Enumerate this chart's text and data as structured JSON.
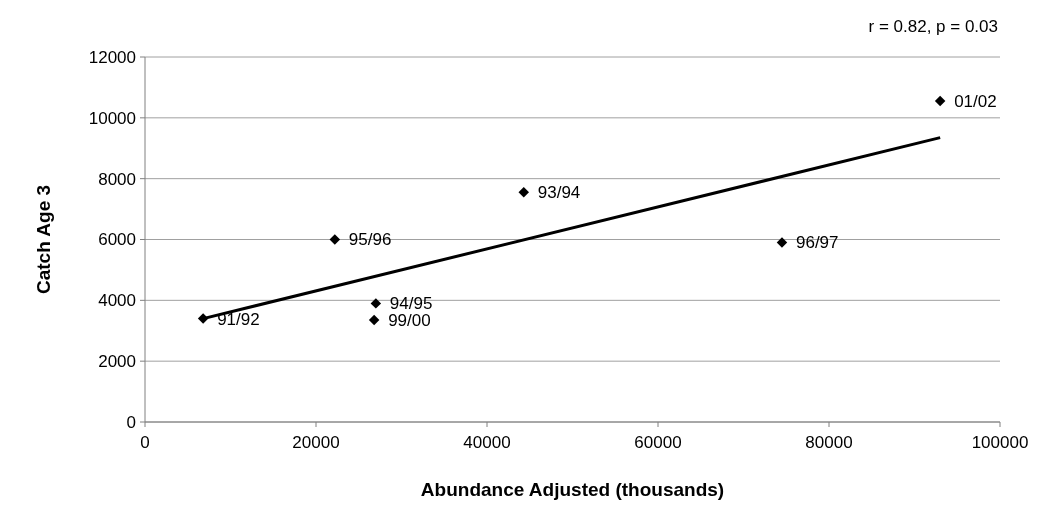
{
  "chart_data": {
    "type": "scatter",
    "xlabel": "Abundance Adjusted (thousands)",
    "ylabel": "Catch Age 3",
    "xlim": [
      0,
      100000
    ],
    "xticks": [
      0,
      20000,
      40000,
      60000,
      80000,
      100000
    ],
    "ylim": [
      0,
      12000
    ],
    "yticks": [
      0,
      2000,
      4000,
      6000,
      8000,
      10000,
      12000
    ],
    "grid": "y",
    "series": [
      {
        "marker": "diamond",
        "color": "#000000",
        "x": [
          6800,
          22200,
          27000,
          26800,
          44300,
          74500,
          93000
        ],
        "values": [
          3400,
          6000,
          3900,
          3350,
          7550,
          5900,
          10550
        ]
      },
      {
        "type": "line",
        "marker": "none",
        "color": "#000000",
        "x": [
          6800,
          93000
        ],
        "values": [
          3400,
          9350
        ]
      }
    ],
    "annotations": [
      "r = 0.82, p = 0.03",
      {
        "text": "91/92",
        "x": 6800,
        "y": 3400
      },
      {
        "text": "95/96",
        "x": 22200,
        "y": 6000
      },
      {
        "text": "94/95",
        "x": 27000,
        "y": 3900
      },
      {
        "text": "99/00",
        "x": 26800,
        "y": 3350
      },
      {
        "text": "93/94",
        "x": 44300,
        "y": 7550
      },
      {
        "text": "96/97",
        "x": 74500,
        "y": 5900
      },
      {
        "text": "01/02",
        "x": 93000,
        "y": 10550
      }
    ]
  }
}
